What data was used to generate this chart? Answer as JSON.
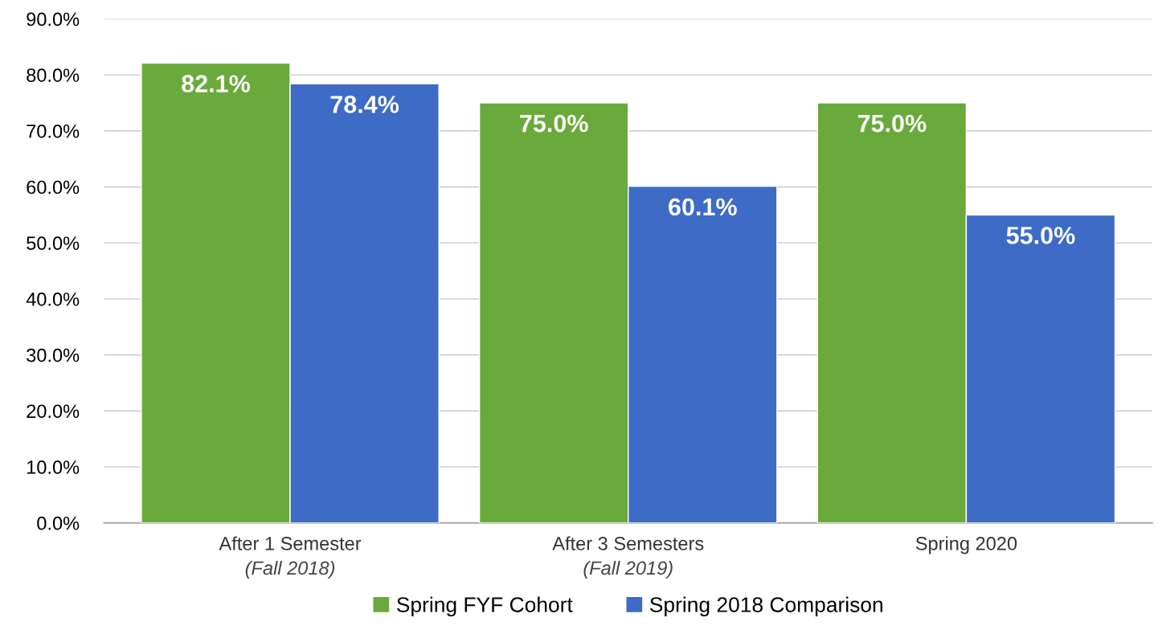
{
  "chart_data": {
    "type": "bar",
    "categories": [
      "After 1 Semester\n(Fall 2018)",
      "After 3 Semesters\n(Fall 2019)",
      "Spring 2020"
    ],
    "series": [
      {
        "name": "Spring FYF Cohort",
        "color": "#6aaa3c",
        "values": [
          82.1,
          75.0,
          75.0
        ],
        "value_labels": [
          "82.1%",
          "75.0%",
          "75.0%"
        ]
      },
      {
        "name": "Spring 2018 Comparison",
        "color": "#3d6bc6",
        "values": [
          78.4,
          60.1,
          55.0
        ],
        "value_labels": [
          "78.4%",
          "60.1%",
          "55.0%"
        ]
      }
    ],
    "ylim": [
      0,
      90
    ],
    "yticks": [
      {
        "value": 0,
        "label": "0.0%"
      },
      {
        "value": 10,
        "label": "10.0%"
      },
      {
        "value": 20,
        "label": "20.0%"
      },
      {
        "value": 30,
        "label": "30.0%"
      },
      {
        "value": 40,
        "label": "40.0%"
      },
      {
        "value": 50,
        "label": "50.0%"
      },
      {
        "value": 60,
        "label": "60.0%"
      },
      {
        "value": 70,
        "label": "70.0%"
      },
      {
        "value": 80,
        "label": "80.0%"
      },
      {
        "value": 90,
        "label": "90.0%"
      }
    ],
    "grid": "y",
    "legend": "bottom"
  }
}
